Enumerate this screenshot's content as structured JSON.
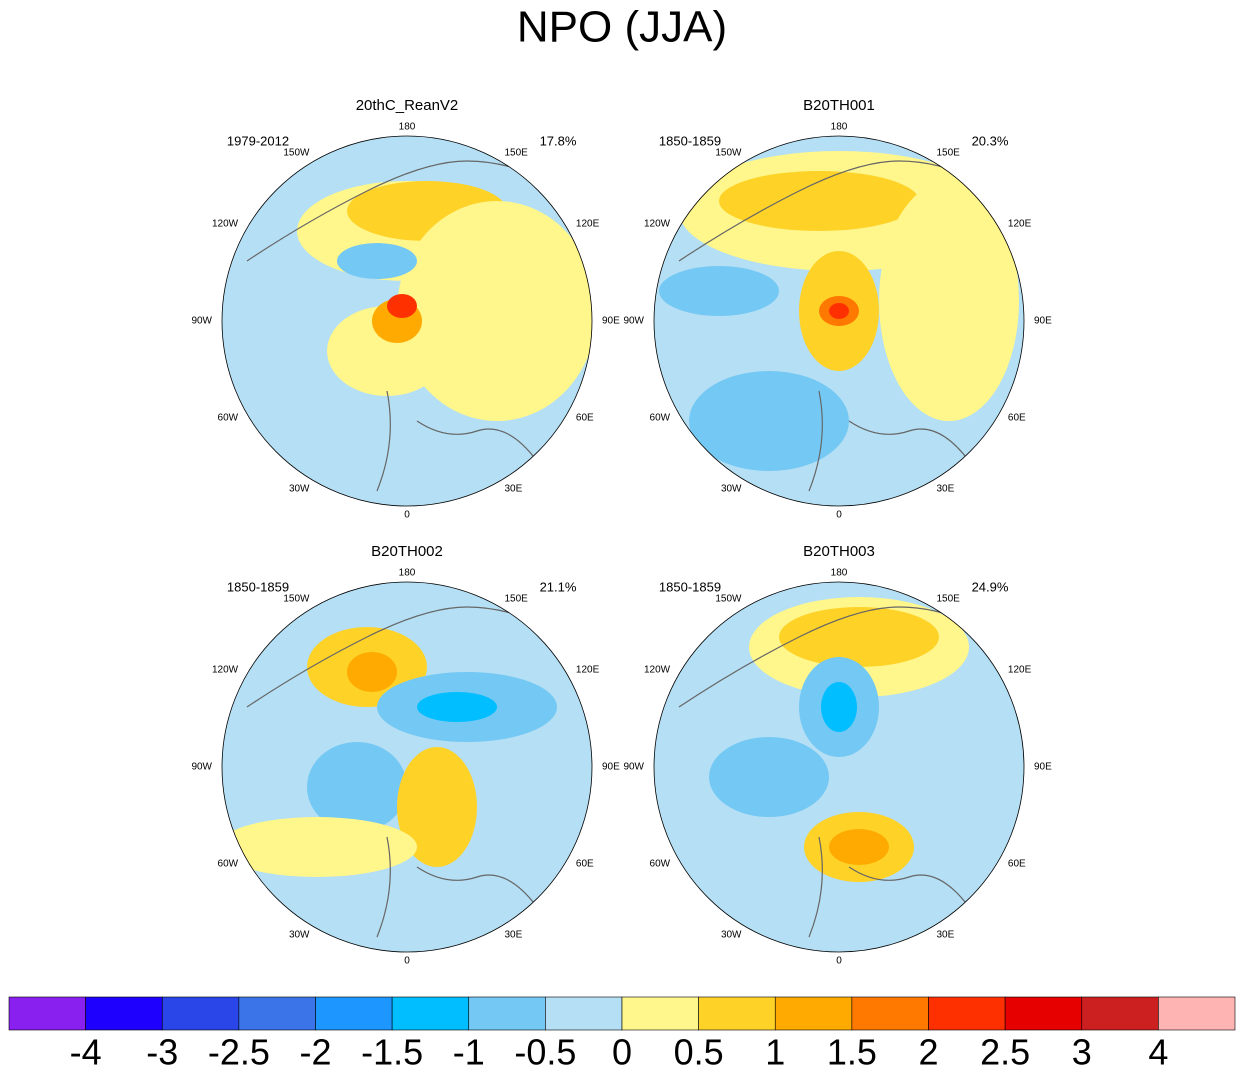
{
  "title": "NPO (JJA)",
  "longitude_labels": [
    "0",
    "30E",
    "60E",
    "90E",
    "120E",
    "150E",
    "180",
    "150W",
    "120W",
    "90W",
    "60W",
    "30W"
  ],
  "panels": [
    {
      "title": "20thC_ReanV2",
      "period": "1979-2012",
      "variance": "17.8%"
    },
    {
      "title": "B20TH001",
      "period": "1850-1859",
      "variance": "20.3%"
    },
    {
      "title": "B20TH002",
      "period": "1850-1859",
      "variance": "21.1%"
    },
    {
      "title": "B20TH003",
      "period": "1850-1859",
      "variance": "24.9%"
    }
  ],
  "colorbar": {
    "levels": [
      -4,
      -3,
      -2.5,
      -2,
      -1.5,
      -1,
      -0.5,
      0,
      0.5,
      1,
      1.5,
      2,
      2.5,
      3,
      4
    ],
    "colors": [
      "#8a20f0",
      "#1e00ff",
      "#2b46e8",
      "#3a74e8",
      "#1e96ff",
      "#00beff",
      "#74c8f4",
      "#b4dff4",
      "#fff68c",
      "#ffd228",
      "#ffaa00",
      "#ff7800",
      "#ff3000",
      "#e60000",
      "#cc1f1f",
      "#ffb4b4"
    ]
  }
}
